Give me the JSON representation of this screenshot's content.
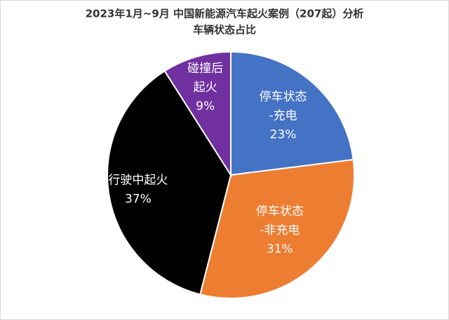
{
  "chart_data": {
    "type": "pie",
    "title": "2023年1月~9月  中国新能源汽车起火案例（207起）分析",
    "subtitle": "车辆状态占比",
    "categories": [
      [
        "停车状态",
        "-充电"
      ],
      [
        "停车状态",
        "-非充电"
      ],
      [
        "行驶中起火"
      ],
      [
        "碰撞后",
        "起火"
      ]
    ],
    "values": [
      23,
      31,
      37,
      9
    ],
    "value_labels": [
      "23%",
      "31%",
      "37%",
      "9%"
    ],
    "colors": [
      "#4472c4",
      "#ed7d31",
      "#000000",
      "#7030a0"
    ]
  }
}
